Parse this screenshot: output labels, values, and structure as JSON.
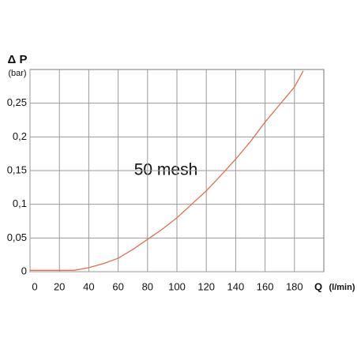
{
  "chart_data": {
    "type": "line",
    "y_label": "Δ P",
    "y_unit": "(bar)",
    "x_label": "Q",
    "x_unit": "(l/min)",
    "annotation": "50 mesh",
    "x": [
      0,
      30,
      40,
      50,
      60,
      70,
      80,
      90,
      100,
      110,
      120,
      130,
      140,
      150,
      160,
      170,
      180,
      186
    ],
    "series": [
      {
        "color": "#e07050",
        "values": [
          0.002,
          0.002,
          0.006,
          0.012,
          0.02,
          0.033,
          0.048,
          0.063,
          0.08,
          0.1,
          0.12,
          0.143,
          0.167,
          0.193,
          0.222,
          0.248,
          0.274,
          0.298
        ]
      }
    ],
    "xlim": [
      0,
      200
    ],
    "xticks": [
      0,
      20,
      40,
      60,
      80,
      100,
      120,
      140,
      160,
      180
    ],
    "ylim": [
      0,
      0.3
    ],
    "yticks": [
      0,
      {
        "value": 0.05,
        "label": "0,05"
      },
      {
        "value": 0.1,
        "label": "0,1"
      },
      {
        "value": 0.15,
        "label": "0,15"
      },
      {
        "value": 0.2,
        "label": "0,2"
      },
      {
        "value": 0.25,
        "label": "0,25"
      }
    ],
    "grid": true
  }
}
